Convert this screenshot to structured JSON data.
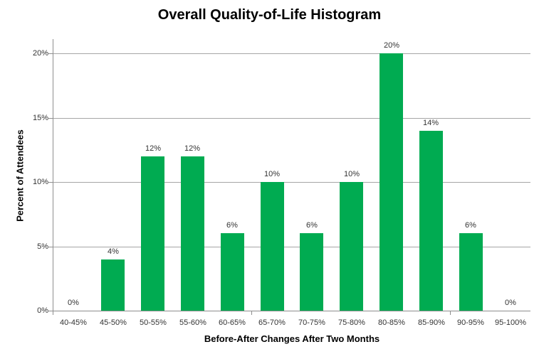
{
  "chart_data": {
    "type": "bar",
    "title": "Overall Quality-of-Life Histogram",
    "xlabel": "Before-After Changes After Two Months",
    "ylabel": "Percent of Attendees",
    "categories": [
      "40-45%",
      "45-50%",
      "50-55%",
      "55-60%",
      "60-65%",
      "65-70%",
      "70-75%",
      "75-80%",
      "80-85%",
      "85-90%",
      "90-95%",
      "95-100%"
    ],
    "values": [
      0,
      4,
      12,
      12,
      6,
      10,
      6,
      10,
      20,
      14,
      6,
      0
    ],
    "data_labels": [
      "0%",
      "4%",
      "12%",
      "12%",
      "6%",
      "10%",
      "6%",
      "10%",
      "20%",
      "14%",
      "6%",
      "0%"
    ],
    "ylim": [
      0,
      20
    ],
    "yticks": [
      0,
      5,
      10,
      15,
      20
    ],
    "ytick_labels": [
      "0%",
      "5%",
      "10%",
      "15%",
      "20%"
    ],
    "x_tick_interval": 5,
    "grid": true,
    "legend": "none",
    "colors": {
      "bar": "#00AB51",
      "gridline": "#A6A6A6",
      "axis": "#8E8E8E",
      "tick_label": "#333333",
      "title": "#000000"
    }
  }
}
